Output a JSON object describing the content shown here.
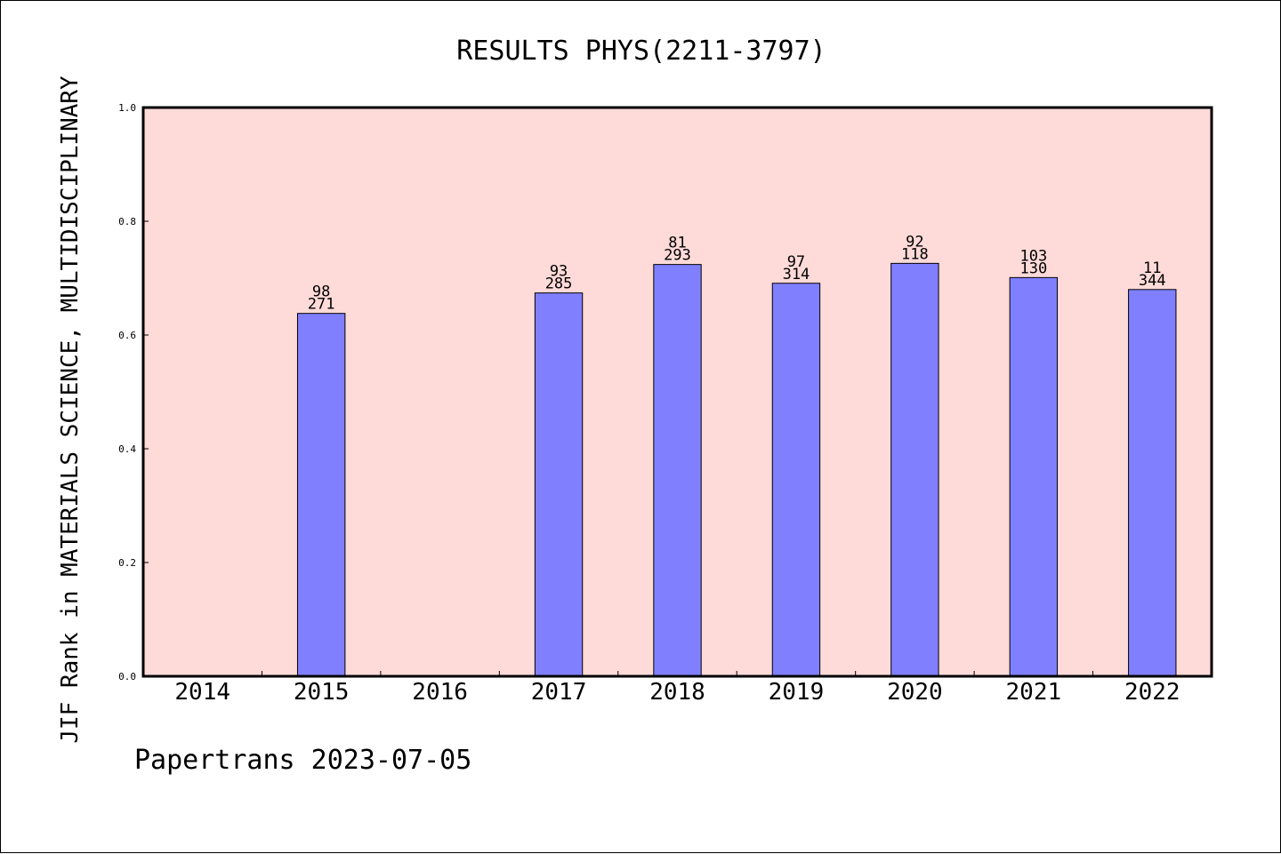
{
  "chart_data": {
    "type": "bar",
    "title": "RESULTS PHYS(2211-3797)",
    "xlabel": "",
    "ylabel": "JIF Rank in MATERIALS SCIENCE, MULTIDISCIPLINARY",
    "ylim": [
      0,
      1.0
    ],
    "yticks": [
      "0.0",
      "0.2",
      "0.4",
      "0.6",
      "0.8",
      "1.0"
    ],
    "categories": [
      "2014",
      "2015",
      "2016",
      "2017",
      "2018",
      "2019",
      "2020",
      "2021",
      "2022"
    ],
    "values": [
      null,
      0.638,
      null,
      0.674,
      0.724,
      0.691,
      0.726,
      0.701,
      0.68
    ],
    "labels_top": [
      "",
      "98",
      "",
      "93",
      "81",
      "97",
      "92",
      "103",
      "11"
    ],
    "labels_bottom": [
      "",
      "271",
      "",
      "285",
      "293",
      "314",
      "118",
      "130",
      "344"
    ],
    "grid": false,
    "colors": {
      "plot_background": "#fedad8",
      "bar_fill": "#8080ff",
      "bar_stroke": "#000000"
    }
  },
  "footer": {
    "text": "Papertrans 2023-07-05"
  }
}
